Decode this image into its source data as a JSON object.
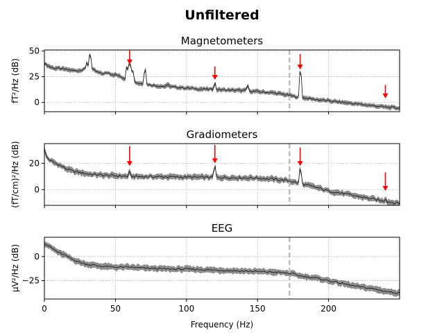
{
  "figure": {
    "suptitle": "Unfiltered",
    "xlabel": "Frequency (Hz)"
  },
  "chart_data": [
    {
      "type": "line",
      "title": "Magnetometers",
      "ylabel": "fT²/Hz (dB)",
      "xlim": [
        0,
        250
      ],
      "ylim": [
        -9,
        51
      ],
      "yticks": [
        0,
        25,
        50
      ],
      "ytick_labels": [
        "0",
        "25",
        "50"
      ],
      "xticks": [
        0,
        50,
        100,
        150,
        200
      ],
      "grid": true,
      "series": [
        {
          "x": [
            0,
            2,
            5,
            8,
            10,
            15,
            20,
            25,
            28,
            30,
            32,
            35,
            38,
            40,
            42,
            45,
            48,
            50,
            52,
            55,
            58,
            60,
            62,
            65,
            70,
            75,
            80,
            85,
            90,
            95,
            100,
            110,
            120,
            130,
            140,
            145,
            150,
            160,
            165,
            170,
            172,
            175,
            180,
            185,
            190,
            200,
            210,
            220,
            230,
            240,
            245,
            250
          ],
          "mean": [
            38,
            36,
            34,
            33,
            33,
            32,
            31,
            31,
            33,
            32,
            34,
            31,
            29,
            28,
            28,
            29,
            27,
            27,
            26,
            24,
            22,
            24,
            22,
            19,
            18,
            17,
            16,
            15.5,
            15,
            14.5,
            14,
            13,
            12.5,
            12,
            11.5,
            11,
            10.5,
            9.5,
            8.5,
            7.5,
            7,
            6,
            5,
            4,
            3,
            1.5,
            0,
            -1.5,
            -3,
            -4.5,
            -5,
            -5.5
          ],
          "band": 2
        }
      ],
      "peaks": [
        {
          "x": 30,
          "y": 40
        },
        {
          "x": 32,
          "y": 48
        },
        {
          "x": 58,
          "y": 36
        },
        {
          "x": 60,
          "y": 40
        },
        {
          "x": 62,
          "y": 33
        },
        {
          "x": 71,
          "y": 33
        },
        {
          "x": 87,
          "y": 20
        },
        {
          "x": 120,
          "y": 20
        },
        {
          "x": 143,
          "y": 18
        },
        {
          "x": 180,
          "y": 31
        },
        {
          "x": 240,
          "y": -2
        }
      ],
      "lowpass_line": 172.5,
      "arrows": [
        {
          "x": 60,
          "y_top": 51,
          "y_tip": 37
        },
        {
          "x": 120,
          "y_top": 35,
          "y_tip": 22
        },
        {
          "x": 180,
          "y_top": 47,
          "y_tip": 32
        },
        {
          "x": 240,
          "y_top": 17,
          "y_tip": 4
        }
      ]
    },
    {
      "type": "line",
      "title": "Gradiometers",
      "ylabel": "(fT/cm)²/Hz (dB)",
      "xlim": [
        0,
        250
      ],
      "ylim": [
        -12,
        35
      ],
      "yticks": [
        0,
        20
      ],
      "ytick_labels": [
        "0",
        "20"
      ],
      "xticks": [
        0,
        50,
        100,
        150,
        200
      ],
      "grid": true,
      "series": [
        {
          "x": [
            0,
            1,
            3,
            6,
            10,
            15,
            20,
            30,
            40,
            50,
            60,
            80,
            100,
            120,
            140,
            150,
            160,
            170,
            175,
            180,
            190,
            200,
            210,
            220,
            230,
            240,
            250
          ],
          "mean": [
            32,
            26,
            23,
            21,
            19,
            16,
            14,
            12,
            11,
            10.5,
            10,
            9.8,
            9.5,
            9.3,
            9,
            8.8,
            8,
            7,
            6,
            4.5,
            2,
            -1,
            -3,
            -5,
            -7,
            -9,
            -10.5
          ],
          "band": 2
        }
      ],
      "peaks": [
        {
          "x": 60,
          "y": 16
        },
        {
          "x": 120,
          "y": 19
        },
        {
          "x": 180,
          "y": 17
        },
        {
          "x": 240,
          "y": -5
        }
      ],
      "lowpass_line": 172.5,
      "arrows": [
        {
          "x": 60,
          "y_top": 33,
          "y_tip": 18
        },
        {
          "x": 120,
          "y_top": 34,
          "y_tip": 20
        },
        {
          "x": 180,
          "y_top": 32,
          "y_tip": 18
        },
        {
          "x": 240,
          "y_top": 13,
          "y_tip": -1
        }
      ]
    },
    {
      "type": "line",
      "title": "EEG",
      "ylabel": "μV²/Hz (dB)",
      "xlim": [
        0,
        250
      ],
      "ylim": [
        -44,
        20
      ],
      "yticks": [
        0,
        -25
      ],
      "ytick_labels": [
        "0",
        "−25"
      ],
      "xticks": [
        0,
        50,
        100,
        150,
        200
      ],
      "xtick_labels": [
        "0",
        "50",
        "100",
        "150",
        "200"
      ],
      "grid": true,
      "series": [
        {
          "x": [
            0,
            2,
            5,
            10,
            15,
            20,
            25,
            30,
            40,
            50,
            60,
            70,
            80,
            90,
            100,
            110,
            120,
            130,
            140,
            150,
            160,
            170,
            175,
            180,
            190,
            200,
            210,
            220,
            230,
            240,
            245,
            250
          ],
          "mean": [
            14,
            12,
            9,
            4,
            1,
            -3,
            -6,
            -8,
            -10,
            -11,
            -11,
            -12,
            -12.5,
            -13,
            -13,
            -13.5,
            -14,
            -14.5,
            -15,
            -15.5,
            -16,
            -17,
            -18,
            -20,
            -22,
            -25,
            -28,
            -31,
            -33,
            -36,
            -37,
            -38
          ],
          "band": 3
        }
      ],
      "peaks": [],
      "lowpass_line": 172.5,
      "arrows": []
    }
  ]
}
